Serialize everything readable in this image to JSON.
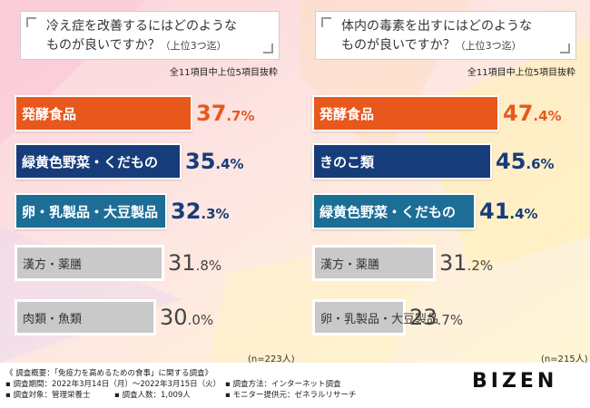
{
  "colors": {
    "orange": "#e8581c",
    "navy": "#173c7a",
    "teal": "#1d6e96",
    "gray": "#c9c9c9"
  },
  "left": {
    "question": [
      "冷え症を改善するにはどのような",
      "ものが良いですか？"
    ],
    "question_note": "（上位3つ迄）",
    "note": "全11項目中上位5項目抜粋",
    "n": "(n=223人)"
  },
  "right": {
    "question": [
      "体内の毒素を出すにはどのような",
      "ものが良いですか？"
    ],
    "question_note": "（上位3つ迄）",
    "note": "全11項目中上位5項目抜粋",
    "n": "(n=215人)"
  },
  "chart_data": [
    {
      "type": "bar",
      "orientation": "horizontal",
      "title": "冷え症を改善するにはどのようなものが良いですか？（上位3つ迄）",
      "categories": [
        "発酵食品",
        "緑黄色野菜・くだもの",
        "卵・乳製品・大豆製品",
        "漢方・薬膳",
        "肉類・魚類"
      ],
      "values": [
        37.7,
        35.4,
        32.3,
        31.8,
        30.0
      ],
      "labels": [
        {
          "int": "37",
          "dec": ".7",
          "pct": "%"
        },
        {
          "int": "35",
          "dec": ".4",
          "pct": "%"
        },
        {
          "int": "32",
          "dec": ".3",
          "pct": "%"
        },
        {
          "int": "31",
          "dec": ".8",
          "pct": "%"
        },
        {
          "int": "30",
          "dec": ".0",
          "pct": "%"
        }
      ],
      "styles": [
        "orange",
        "navy",
        "teal",
        "gray",
        "gray"
      ],
      "unit": "%"
    },
    {
      "type": "bar",
      "orientation": "horizontal",
      "title": "体内の毒素を出すにはどのようなものが良いですか？（上位3つ迄）",
      "categories": [
        "発酵食品",
        "きのこ類",
        "緑黄色野菜・くだもの",
        "漢方・薬膳",
        "卵・乳製品・大豆製品"
      ],
      "values": [
        47.4,
        45.6,
        41.4,
        31.2,
        23.7
      ],
      "labels": [
        {
          "int": "47",
          "dec": ".4",
          "pct": "%"
        },
        {
          "int": "45",
          "dec": ".6",
          "pct": "%"
        },
        {
          "int": "41",
          "dec": ".4",
          "pct": "%"
        },
        {
          "int": "31",
          "dec": ".2",
          "pct": "%"
        },
        {
          "int": "23",
          "dec": ".7",
          "pct": "%"
        }
      ],
      "styles": [
        "orange",
        "navy",
        "teal",
        "gray",
        "gray"
      ],
      "unit": "%"
    }
  ],
  "footer": {
    "line1": "《 調査概要：「免疫力を高めるための食事」に関する調査》",
    "period": "▪ 調査期間：2022年3月14日（月）〜2022年3月15日（火）",
    "method": "▪ 調査方法：インターネット調査",
    "target": "▪ 調査対象：管理栄養士",
    "count": "▪ 調査人数：1,009人",
    "monitor": "▪ モニター提供元：ゼネラルリサーチ"
  },
  "logo": "BIZEN"
}
